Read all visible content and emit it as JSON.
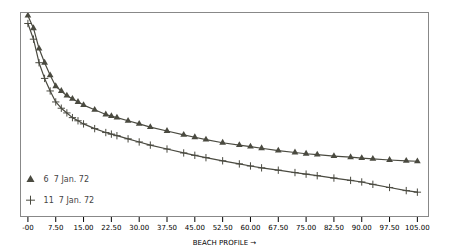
{
  "chart_data": {
    "type": "line",
    "xlabel": "BEACH PROFILE",
    "x": [
      0,
      1.5,
      3,
      4.5,
      6,
      7.5,
      9,
      10.5,
      12,
      13.5,
      15,
      18,
      21,
      22.5,
      24,
      27,
      30,
      33,
      37.5,
      42,
      45,
      48,
      52.5,
      57,
      60,
      63,
      67.5,
      72,
      75,
      78,
      82.5,
      87,
      90,
      93,
      97.5,
      102,
      105
    ],
    "series": [
      {
        "name": "  6  7 Jan. 72",
        "color": "#4a4a40",
        "marker": "triangle",
        "values": [
          98,
          90,
          77,
          68,
          60,
          53,
          50,
          47,
          45,
          43,
          41,
          38,
          35,
          34,
          33,
          31,
          29,
          27,
          24.5,
          22,
          20.5,
          19,
          17,
          15.5,
          14.5,
          13.5,
          12,
          10.8,
          10,
          9.4,
          8.5,
          7.8,
          7.2,
          6.7,
          6.0,
          5.5,
          5.2
        ]
      },
      {
        "name": "  11  7 Jan. 72",
        "color": "#4a4a40",
        "marker": "plus",
        "values": [
          93,
          83,
          68,
          58,
          50,
          43,
          39,
          36,
          33,
          31,
          29,
          26,
          23.5,
          22.5,
          21.5,
          19.5,
          17.5,
          15.5,
          13,
          10.5,
          9,
          7.5,
          5.5,
          3.5,
          2.2,
          1.0,
          -0.5,
          -2,
          -3,
          -4,
          -5.5,
          -7,
          -8,
          -9.5,
          -11.5,
          -13.5,
          -14.5
        ]
      }
    ],
    "xlim": [
      -2,
      108
    ],
    "ylim": [
      -30,
      100
    ],
    "xticks": [
      {
        "value": 0,
        "label": "-00"
      },
      {
        "value": 7.5,
        "label": "7.50"
      },
      {
        "value": 15.0,
        "label": "15.00"
      },
      {
        "value": 22.5,
        "label": "22.50"
      },
      {
        "value": 30.0,
        "label": "30.00"
      },
      {
        "value": 37.5,
        "label": "37.50"
      },
      {
        "value": 45.0,
        "label": "45.00"
      },
      {
        "value": 52.5,
        "label": "52.50"
      },
      {
        "value": 60.0,
        "label": "60.00"
      },
      {
        "value": 67.5,
        "label": "67.50"
      },
      {
        "value": 75.0,
        "label": "75.00"
      },
      {
        "value": 82.5,
        "label": "82.50"
      },
      {
        "value": 90.0,
        "label": "90.00"
      },
      {
        "value": 97.5,
        "label": "97.50"
      },
      {
        "value": 105.0,
        "label": "105.00"
      }
    ],
    "tick_labels": "x",
    "grid": false,
    "legend": "lower left"
  }
}
